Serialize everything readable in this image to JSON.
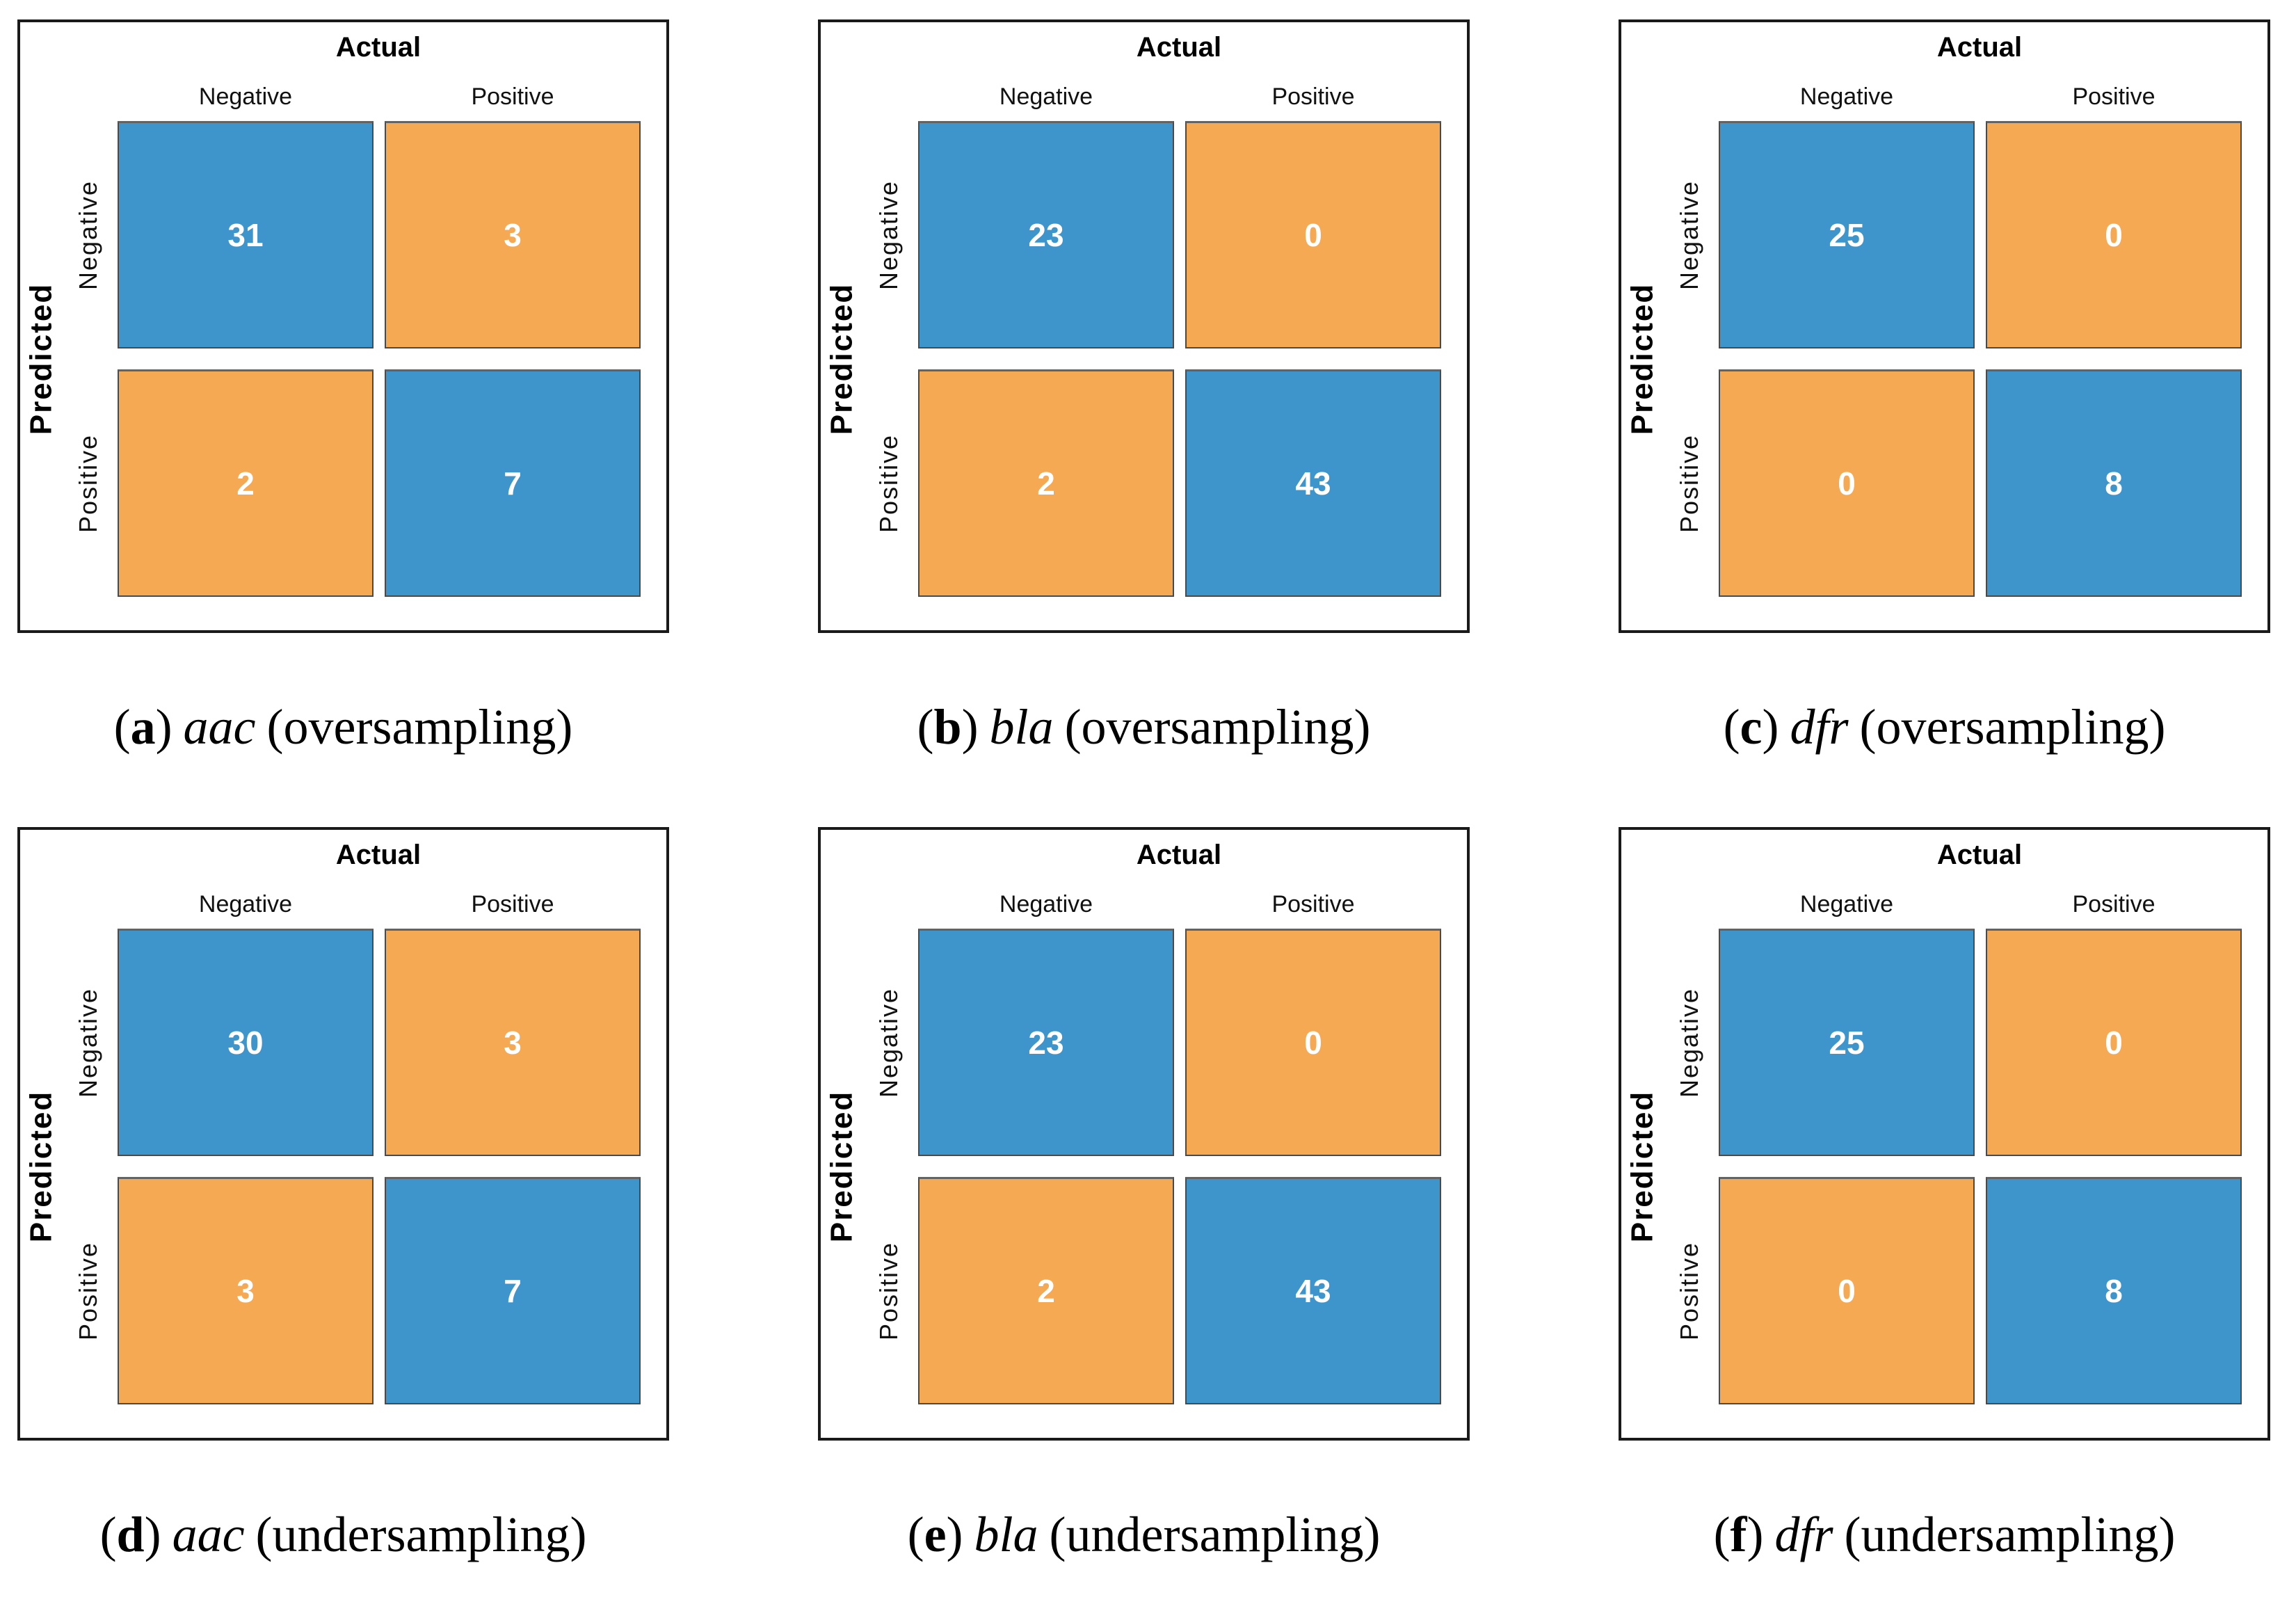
{
  "caption_tokens": {
    "open": "(",
    "close": ")"
  },
  "colors": {
    "diagonal_cell_blue": "#3E95CC",
    "offdiagonal_cell_orange": "#F5A952",
    "cell_text": "#FFFFFF",
    "frame_border": "#1A1A1A"
  },
  "chart_data": [
    {
      "type": "heatmap",
      "panel": "a",
      "gene": "aac",
      "sampling": "oversampling",
      "caption": "(a) aac (oversampling)",
      "x_axis_title": "Actual",
      "y_axis_title": "Predicted",
      "x_categories": [
        "Negative",
        "Positive"
      ],
      "y_categories": [
        "Negative",
        "Positive"
      ],
      "values": [
        [
          31,
          3
        ],
        [
          2,
          7
        ]
      ],
      "cell_color_map": [
        [
          "blue",
          "orange"
        ],
        [
          "orange",
          "blue"
        ]
      ]
    },
    {
      "type": "heatmap",
      "panel": "b",
      "gene": "bla",
      "sampling": "oversampling",
      "caption": "(b) bla (oversampling)",
      "x_axis_title": "Actual",
      "y_axis_title": "Predicted",
      "x_categories": [
        "Negative",
        "Positive"
      ],
      "y_categories": [
        "Negative",
        "Positive"
      ],
      "values": [
        [
          23,
          0
        ],
        [
          2,
          43
        ]
      ],
      "cell_color_map": [
        [
          "blue",
          "orange"
        ],
        [
          "orange",
          "blue"
        ]
      ]
    },
    {
      "type": "heatmap",
      "panel": "c",
      "gene": "dfr",
      "sampling": "oversampling",
      "caption": "(c) dfr (oversampling)",
      "x_axis_title": "Actual",
      "y_axis_title": "Predicted",
      "x_categories": [
        "Negative",
        "Positive"
      ],
      "y_categories": [
        "Negative",
        "Positive"
      ],
      "values": [
        [
          25,
          0
        ],
        [
          0,
          8
        ]
      ],
      "cell_color_map": [
        [
          "blue",
          "orange"
        ],
        [
          "orange",
          "blue"
        ]
      ]
    },
    {
      "type": "heatmap",
      "panel": "d",
      "gene": "aac",
      "sampling": "undersampling",
      "caption": "(d) aac (undersampling)",
      "x_axis_title": "Actual",
      "y_axis_title": "Predicted",
      "x_categories": [
        "Negative",
        "Positive"
      ],
      "y_categories": [
        "Negative",
        "Positive"
      ],
      "values": [
        [
          30,
          3
        ],
        [
          3,
          7
        ]
      ],
      "cell_color_map": [
        [
          "blue",
          "orange"
        ],
        [
          "orange",
          "blue"
        ]
      ]
    },
    {
      "type": "heatmap",
      "panel": "e",
      "gene": "bla",
      "sampling": "undersampling",
      "caption": "(e) bla (undersampling)",
      "x_axis_title": "Actual",
      "y_axis_title": "Predicted",
      "x_categories": [
        "Negative",
        "Positive"
      ],
      "y_categories": [
        "Negative",
        "Positive"
      ],
      "values": [
        [
          23,
          0
        ],
        [
          2,
          43
        ]
      ],
      "cell_color_map": [
        [
          "blue",
          "orange"
        ],
        [
          "orange",
          "blue"
        ]
      ]
    },
    {
      "type": "heatmap",
      "panel": "f",
      "gene": "dfr",
      "sampling": "undersampling",
      "caption": "(f) dfr (undersampling)",
      "x_axis_title": "Actual",
      "y_axis_title": "Predicted",
      "x_categories": [
        "Negative",
        "Positive"
      ],
      "y_categories": [
        "Negative",
        "Positive"
      ],
      "values": [
        [
          25,
          0
        ],
        [
          0,
          8
        ]
      ],
      "cell_color_map": [
        [
          "blue",
          "orange"
        ],
        [
          "orange",
          "blue"
        ]
      ]
    }
  ]
}
